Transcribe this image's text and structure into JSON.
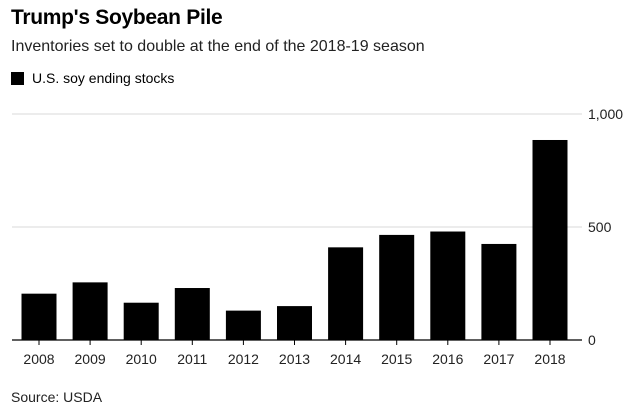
{
  "header": {
    "title": "Trump's Soybean Pile",
    "subtitle": "Inventories set to double at the end of the 2018-19 season"
  },
  "legend": {
    "label": "U.S. soy ending stocks",
    "color": "#000000"
  },
  "source": "Source: USDA",
  "chart_data": {
    "type": "bar",
    "categories": [
      "2008",
      "2009",
      "2010",
      "2011",
      "2012",
      "2013",
      "2014",
      "2015",
      "2016",
      "2017",
      "2018"
    ],
    "series": [
      {
        "name": "U.S. soy ending stocks",
        "values": [
          205,
          255,
          165,
          230,
          130,
          150,
          410,
          465,
          480,
          425,
          885
        ],
        "color": "#000000"
      }
    ],
    "y_ticks": [
      0,
      500,
      1000
    ],
    "y_tick_labels": [
      "0",
      "500",
      "1,000"
    ],
    "ylim": [
      0,
      1000
    ],
    "y_axis_position": "right",
    "grid": true,
    "legend_position": "top-left"
  }
}
